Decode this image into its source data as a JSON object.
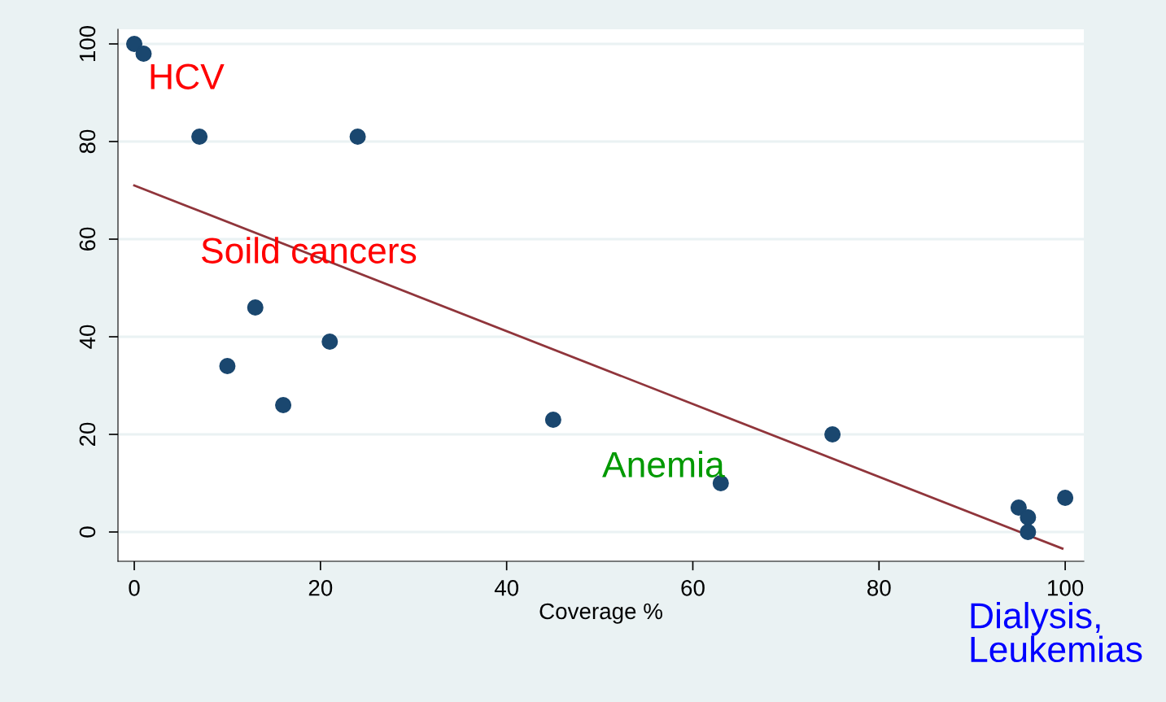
{
  "chart_data": {
    "type": "scatter",
    "xlabel": "Coverage %",
    "xlim": [
      -1.75,
      102
    ],
    "xticks": [
      0,
      20,
      40,
      60,
      80,
      100
    ],
    "ylim": [
      -6,
      103
    ],
    "yticks": [
      0,
      20,
      40,
      60,
      80,
      100
    ],
    "grid": "y",
    "legend": false,
    "series": [
      {
        "marker": "circle",
        "color": "#1a476f",
        "x": [
          0,
          1,
          7,
          24,
          13,
          10,
          21,
          16,
          45,
          63,
          75,
          95,
          96,
          96,
          100
        ],
        "values": [
          100,
          98,
          81,
          81,
          46,
          34,
          39,
          26,
          23,
          10,
          20,
          5,
          3,
          0,
          7
        ]
      },
      {
        "type": "line",
        "marker": "none",
        "color": "#90353b",
        "x": [
          0,
          99.7
        ],
        "values": [
          71,
          -3.4
        ]
      }
    ],
    "annotations": [
      "HCV",
      "Soild cancers",
      "Anemia",
      "Dialysis,\nLeukemias"
    ]
  }
}
